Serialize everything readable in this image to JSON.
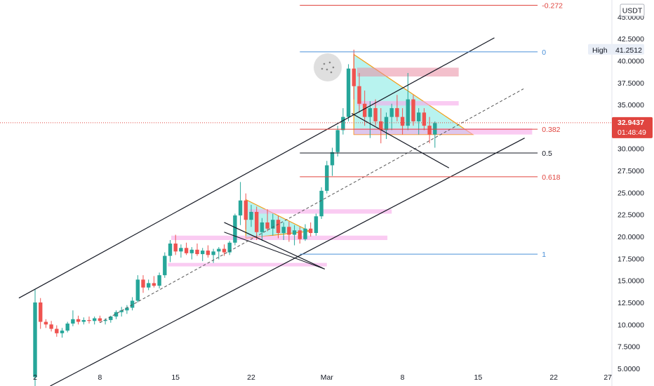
{
  "chart_data": {
    "type": "candlestick",
    "currency": "USDT",
    "ylim": [
      3.0,
      46.5
    ],
    "y_ticks": [
      "45.0000",
      "42.5000",
      "40.0000",
      "37.5000",
      "35.0000",
      "32.5000",
      "30.0000",
      "27.5000",
      "25.0000",
      "22.5000",
      "20.0000",
      "17.5000",
      "15.0000",
      "12.5000",
      "10.0000",
      "7.5000",
      "5.0000"
    ],
    "y_tick_values": [
      45,
      42.5,
      40,
      37.5,
      35,
      32.5,
      30,
      27.5,
      25,
      22.5,
      20,
      17.5,
      15,
      12.5,
      10,
      7.5,
      5
    ],
    "x_ticks": [
      "2",
      "8",
      "15",
      "22",
      "Mar",
      "8",
      "15",
      "22",
      "27"
    ],
    "x_tick_days": [
      0,
      6,
      13,
      20,
      27,
      34,
      41,
      48,
      53
    ],
    "high_label": "High",
    "high_value": "41.2512",
    "high_price": 41.25,
    "current_price": "32.9437",
    "current_price_value": 32.94,
    "countdown": "01:48:49",
    "fib_levels": [
      {
        "label": "-0.272",
        "price": 46.3,
        "color": "#e0453f"
      },
      {
        "label": "0",
        "price": 41.0,
        "color": "#4a90d9"
      },
      {
        "label": "0.382",
        "price": 32.2,
        "color": "#e0453f"
      },
      {
        "label": "0.5",
        "price": 29.5,
        "color": "#131722"
      },
      {
        "label": "0.618",
        "price": 26.8,
        "color": "#e0453f"
      },
      {
        "label": "1",
        "price": 18.0,
        "color": "#4a90d9"
      }
    ],
    "candles": [
      [
        0,
        4.0,
        14.0,
        3.0,
        12.5
      ],
      [
        0.5,
        12.5,
        13.0,
        9.5,
        10.3
      ],
      [
        1,
        10.3,
        10.6,
        9.6,
        10.0
      ],
      [
        1.5,
        10.0,
        10.4,
        9.2,
        9.5
      ],
      [
        2,
        9.5,
        9.9,
        8.6,
        9.0
      ],
      [
        2.5,
        9.0,
        9.6,
        8.5,
        9.3
      ],
      [
        3,
        9.3,
        10.3,
        9.1,
        10.1
      ],
      [
        3.5,
        10.1,
        11.6,
        9.8,
        10.6
      ],
      [
        4,
        10.6,
        11.0,
        10.0,
        10.3
      ],
      [
        4.5,
        10.3,
        10.8,
        10.0,
        10.5
      ],
      [
        5,
        10.5,
        10.9,
        10.1,
        10.4
      ],
      [
        5.5,
        10.4,
        10.9,
        10.0,
        10.7
      ],
      [
        6,
        10.7,
        11.0,
        10.2,
        10.4
      ],
      [
        6.5,
        10.4,
        10.7,
        10.0,
        10.5
      ],
      [
        7,
        10.5,
        11.0,
        10.2,
        10.9
      ],
      [
        7.5,
        10.9,
        11.6,
        10.6,
        11.4
      ],
      [
        8,
        11.4,
        12.0,
        10.9,
        11.6
      ],
      [
        8.5,
        11.6,
        12.2,
        11.2,
        11.9
      ],
      [
        9,
        11.9,
        13.1,
        11.6,
        12.7
      ],
      [
        9.5,
        12.7,
        15.6,
        12.5,
        15.1
      ],
      [
        10,
        15.1,
        15.6,
        13.6,
        14.2
      ],
      [
        10.5,
        14.2,
        15.1,
        13.9,
        14.7
      ],
      [
        11,
        14.7,
        15.5,
        14.2,
        14.4
      ],
      [
        11.5,
        14.4,
        15.9,
        14.1,
        15.6
      ],
      [
        12,
        15.6,
        18.2,
        15.3,
        17.8
      ],
      [
        12.5,
        17.8,
        19.6,
        17.1,
        19.2
      ],
      [
        13,
        19.2,
        20.2,
        17.9,
        18.3
      ],
      [
        13.5,
        18.3,
        19.1,
        17.6,
        18.7
      ],
      [
        14,
        18.7,
        19.3,
        17.9,
        18.1
      ],
      [
        14.5,
        18.1,
        18.8,
        17.4,
        18.5
      ],
      [
        15,
        18.5,
        19.2,
        17.8,
        18.0
      ],
      [
        15.5,
        18.0,
        18.7,
        17.2,
        18.4
      ],
      [
        16,
        18.4,
        19.0,
        17.6,
        17.9
      ],
      [
        16.5,
        17.9,
        18.6,
        17.0,
        18.3
      ],
      [
        17,
        18.3,
        18.8,
        17.4,
        18.6
      ],
      [
        17.5,
        18.6,
        19.1,
        17.8,
        18.2
      ],
      [
        18,
        18.2,
        19.5,
        17.9,
        19.3
      ],
      [
        18.5,
        19.3,
        22.6,
        19.0,
        22.4
      ],
      [
        19,
        22.4,
        26.2,
        21.3,
        24.1
      ],
      [
        19.5,
        24.1,
        24.9,
        20.8,
        21.9
      ],
      [
        20,
        21.9,
        23.6,
        21.1,
        22.8
      ],
      [
        20.5,
        22.8,
        23.4,
        19.6,
        20.5
      ],
      [
        21,
        20.5,
        22.1,
        19.5,
        21.6
      ],
      [
        21.5,
        21.6,
        23.1,
        20.6,
        20.9
      ],
      [
        22,
        20.9,
        22.6,
        20.1,
        21.9
      ],
      [
        22.5,
        21.9,
        22.4,
        19.8,
        20.4
      ],
      [
        23,
        20.4,
        21.6,
        19.6,
        21.1
      ],
      [
        23.5,
        21.1,
        21.7,
        19.4,
        20.2
      ],
      [
        24,
        20.2,
        21.3,
        19.0,
        20.7
      ],
      [
        24.5,
        20.7,
        21.1,
        19.2,
        19.7
      ],
      [
        25,
        19.7,
        21.4,
        19.5,
        20.9
      ],
      [
        25.5,
        20.9,
        21.6,
        20.0,
        20.4
      ],
      [
        26,
        20.4,
        22.6,
        20.1,
        22.3
      ],
      [
        26.5,
        22.3,
        25.6,
        22.0,
        25.2
      ],
      [
        27,
        25.2,
        28.6,
        24.9,
        28.1
      ],
      [
        27.5,
        28.1,
        30.1,
        26.9,
        29.6
      ],
      [
        28,
        29.6,
        32.6,
        29.1,
        32.1
      ],
      [
        28.5,
        32.1,
        34.6,
        31.6,
        33.6
      ],
      [
        29,
        33.6,
        39.6,
        33.1,
        39.1
      ],
      [
        29.5,
        39.1,
        41.25,
        35.6,
        37.1
      ],
      [
        30,
        37.1,
        38.6,
        34.1,
        35.1
      ],
      [
        30.5,
        35.1,
        36.6,
        32.6,
        33.6
      ],
      [
        31,
        33.6,
        35.4,
        31.2,
        34.6
      ],
      [
        31.5,
        34.6,
        35.6,
        32.6,
        33.1
      ],
      [
        32,
        33.1,
        34.6,
        30.6,
        32.1
      ],
      [
        32.5,
        32.1,
        34.1,
        31.1,
        33.6
      ],
      [
        33,
        33.6,
        35.1,
        32.1,
        34.6
      ],
      [
        33.5,
        34.6,
        36.1,
        33.1,
        33.6
      ],
      [
        34,
        33.6,
        34.6,
        31.6,
        32.6
      ],
      [
        34.5,
        32.6,
        38.6,
        32.1,
        35.6
      ],
      [
        35,
        35.6,
        36.1,
        32.6,
        33.1
      ],
      [
        35.5,
        33.1,
        34.6,
        31.6,
        34.1
      ],
      [
        36,
        34.1,
        34.6,
        32.1,
        32.6
      ],
      [
        36.5,
        32.6,
        33.6,
        30.6,
        31.6
      ],
      [
        37,
        31.6,
        33.1,
        30.1,
        32.9
      ]
    ]
  }
}
